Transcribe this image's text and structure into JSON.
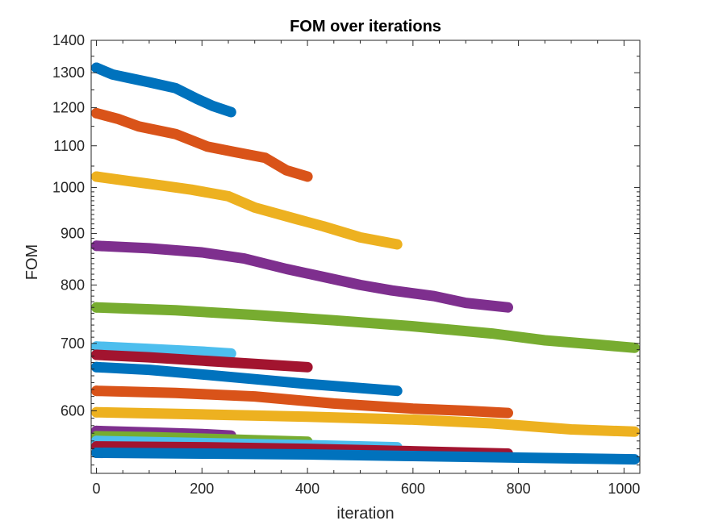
{
  "chart_data": {
    "type": "line",
    "title": "FOM over iterations",
    "xlabel": "iteration",
    "ylabel": "FOM",
    "xlim": [
      -10,
      1030
    ],
    "ylim": [
      520,
      1400
    ],
    "yscale": "log",
    "grid": false,
    "legend": "none",
    "x_ticks": [
      0,
      200,
      400,
      600,
      800,
      1000
    ],
    "y_ticks": [
      600,
      700,
      800,
      900,
      1000,
      1100,
      1200,
      1300,
      1400
    ],
    "series": [
      {
        "color": "#0072BD",
        "x": [
          0,
          30,
          60,
          100,
          150,
          190,
          220,
          255
        ],
        "values": [
          1315,
          1295,
          1285,
          1272,
          1255,
          1225,
          1205,
          1188
        ]
      },
      {
        "color": "#D95319",
        "x": [
          0,
          40,
          80,
          150,
          210,
          260,
          320,
          360,
          400
        ],
        "values": [
          1185,
          1170,
          1150,
          1130,
          1098,
          1085,
          1070,
          1040,
          1025
        ]
      },
      {
        "color": "#EDB120",
        "x": [
          0,
          60,
          120,
          180,
          250,
          300,
          380,
          430,
          500,
          570
        ],
        "values": [
          1025,
          1015,
          1005,
          995,
          980,
          955,
          930,
          915,
          892,
          878
        ]
      },
      {
        "color": "#7E2F8E",
        "x": [
          0,
          100,
          200,
          280,
          360,
          430,
          500,
          560,
          640,
          700,
          780
        ],
        "values": [
          875,
          870,
          862,
          850,
          830,
          815,
          800,
          790,
          780,
          768,
          760
        ]
      },
      {
        "color": "#77AC30",
        "x": [
          0,
          150,
          300,
          450,
          600,
          750,
          850,
          950,
          1020
        ],
        "values": [
          760,
          755,
          747,
          738,
          728,
          716,
          705,
          698,
          693
        ]
      },
      {
        "color": "#4DBEEE",
        "x": [
          0,
          100,
          200,
          255
        ],
        "values": [
          695,
          691,
          687,
          684
        ]
      },
      {
        "color": "#A2142F",
        "x": [
          0,
          100,
          200,
          300,
          400
        ],
        "values": [
          682,
          678,
          673,
          668,
          663
        ]
      },
      {
        "color": "#0072BD",
        "x": [
          0,
          100,
          200,
          300,
          400,
          500,
          570
        ],
        "values": [
          663,
          659,
          652,
          645,
          638,
          632,
          628
        ]
      },
      {
        "color": "#D95319",
        "x": [
          0,
          150,
          300,
          450,
          600,
          700,
          780
        ],
        "values": [
          628,
          625,
          620,
          610,
          603,
          600,
          597
        ]
      },
      {
        "color": "#EDB120",
        "x": [
          0,
          200,
          400,
          600,
          750,
          900,
          1020
        ],
        "values": [
          598,
          595,
          592,
          588,
          583,
          575,
          572
        ]
      },
      {
        "color": "#7E2F8E",
        "x": [
          0,
          100,
          200,
          255
        ],
        "values": [
          573,
          571,
          569,
          567
        ]
      },
      {
        "color": "#77AC30",
        "x": [
          0,
          100,
          200,
          300,
          400
        ],
        "values": [
          566,
          565,
          563,
          561,
          559
        ]
      },
      {
        "color": "#4DBEEE",
        "x": [
          0,
          150,
          300,
          450,
          570
        ],
        "values": [
          560,
          558,
          556,
          554,
          552
        ]
      },
      {
        "color": "#A2142F",
        "x": [
          0,
          200,
          400,
          600,
          780
        ],
        "values": [
          553,
          552,
          550,
          547,
          544
        ]
      },
      {
        "color": "#0072BD",
        "x": [
          0,
          200,
          400,
          600,
          800,
          1020
        ],
        "values": [
          545,
          544,
          543,
          541,
          539,
          537
        ]
      }
    ]
  }
}
